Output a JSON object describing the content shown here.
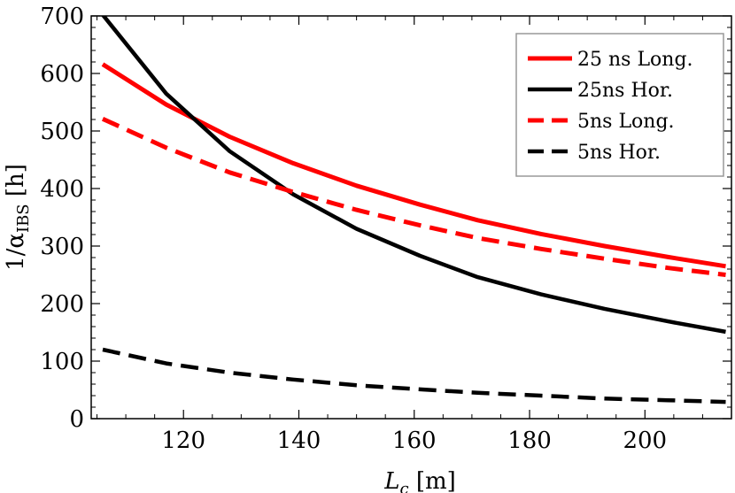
{
  "chart_data": {
    "type": "line",
    "title": "",
    "xlabel_main": "L",
    "xlabel_sub": "c",
    "xlabel_unit": " [m]",
    "ylabel_main": "1/α",
    "ylabel_sub": "IBS",
    "ylabel_unit": " [h]",
    "xlim": [
      104,
      215
    ],
    "ylim": [
      0,
      700
    ],
    "xticks": [
      120,
      140,
      160,
      180,
      200
    ],
    "yticks": [
      0,
      100,
      200,
      300,
      400,
      500,
      600,
      700
    ],
    "legend_position": "top-right",
    "grid": false,
    "series": [
      {
        "name": "25 ns Long.",
        "color": "#ff0000",
        "dash": "solid",
        "x": [
          106,
          117,
          128,
          139,
          150,
          161,
          171,
          182,
          193,
          204,
          214
        ],
        "y": [
          616,
          546,
          490,
          444,
          405,
          372,
          345,
          321,
          300,
          281,
          265
        ]
      },
      {
        "name": "25ns Hor.",
        "color": "#000000",
        "dash": "solid",
        "x": [
          106,
          117,
          128,
          139,
          150,
          161,
          171,
          182,
          193,
          204,
          214
        ],
        "y": [
          702,
          565,
          465,
          390,
          330,
          283,
          246,
          216,
          191,
          169,
          151
        ]
      },
      {
        "name": "5ns Long.",
        "color": "#ff0000",
        "dash": "dashed",
        "x": [
          106,
          117,
          128,
          139,
          150,
          161,
          171,
          182,
          193,
          204,
          214
        ],
        "y": [
          521,
          471,
          428,
          394,
          363,
          336,
          314,
          295,
          278,
          262,
          250
        ]
      },
      {
        "name": "5ns Hor.",
        "color": "#000000",
        "dash": "dashed",
        "x": [
          106,
          117,
          128,
          139,
          150,
          161,
          171,
          182,
          193,
          204,
          214
        ],
        "y": [
          120,
          96,
          80,
          68,
          58,
          51,
          45,
          40,
          35,
          32,
          29
        ]
      }
    ]
  }
}
